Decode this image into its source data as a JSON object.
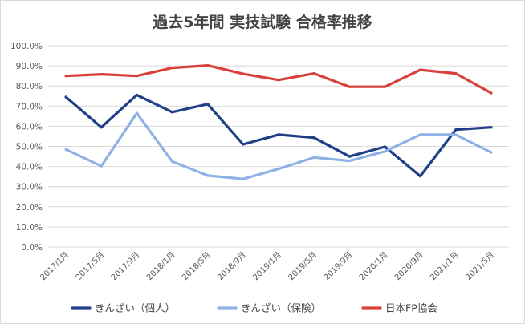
{
  "chart_data": {
    "type": "line",
    "title": "過去5年間 実技試験 合格率推移",
    "categories": [
      "2017/1月",
      "2017/5月",
      "2017/9月",
      "2018/1月",
      "2018/5月",
      "2018/9月",
      "2019/1月",
      "2019/5月",
      "2019/9月",
      "2020/1月",
      "2020/9月",
      "2021/1月",
      "2021/5月"
    ],
    "y_tick_labels": [
      "0.0%",
      "10.0%",
      "20.0%",
      "30.0%",
      "40.0%",
      "50.0%",
      "60.0%",
      "70.0%",
      "80.0%",
      "90.0%",
      "100.0%"
    ],
    "ylim": [
      0,
      100
    ],
    "grid": true,
    "legend_position": "bottom",
    "series": [
      {
        "name": "きんざい（個人）",
        "color": "#1f3f87",
        "values": [
          74.5,
          59.5,
          75.5,
          67,
          71,
          51,
          55.8,
          54.3,
          45,
          49.8,
          35.2,
          58.3,
          59.5
        ]
      },
      {
        "name": "きんざい（保険）",
        "color": "#8fb1e6",
        "values": [
          48.5,
          40.2,
          66.5,
          42.5,
          35.5,
          33.8,
          38.8,
          44.5,
          42.8,
          47.5,
          55.8,
          55.8,
          47
        ]
      },
      {
        "name": "日本FP協会",
        "color": "#d9403a",
        "values": [
          85,
          85.8,
          85,
          89,
          90.2,
          86,
          83,
          86.2,
          79.6,
          79.6,
          88,
          86.2,
          76.5
        ]
      }
    ]
  }
}
